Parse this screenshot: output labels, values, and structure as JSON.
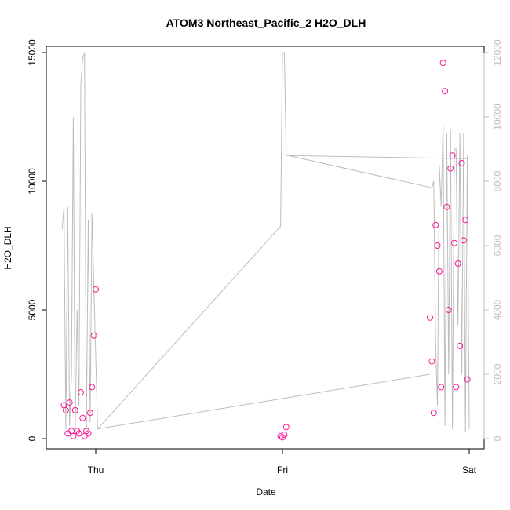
{
  "chart_data": {
    "type": "scatter",
    "title": "ATOM3 Northeast_Pacific_2 H2O_DLH",
    "xlabel": "Date",
    "ylabel": "H2O_DLH",
    "x_ticks": [
      "Thu",
      "Fri",
      "Sat"
    ],
    "x_range_days": [
      -0.2,
      2.0
    ],
    "ylim": [
      0,
      15000
    ],
    "y_ticks": [
      0,
      5000,
      10000,
      15000
    ],
    "y2lim": [
      0,
      12000
    ],
    "y2_ticks": [
      0,
      2000,
      4000,
      6000,
      8000,
      10000,
      12000
    ],
    "grid": false,
    "colors": {
      "points": "#ff1493",
      "altitude_line": "#bdbdbd",
      "right_axis": "#bdbdbd",
      "axis": "#000000"
    },
    "series": [
      {
        "kind": "points",
        "axis": "left",
        "x": [
          -0.17,
          -0.16,
          -0.15,
          -0.14,
          -0.13,
          -0.12,
          -0.11,
          -0.1,
          -0.09,
          -0.08,
          -0.07,
          -0.06,
          -0.05,
          -0.04,
          -0.03,
          -0.02,
          -0.01,
          0.0,
          0.99,
          1.0,
          1.01,
          1.02,
          1.79,
          1.8,
          1.81,
          1.82,
          1.83,
          1.84,
          1.85,
          1.86,
          1.87,
          1.88,
          1.89,
          1.9,
          1.91,
          1.92,
          1.93,
          1.94,
          1.95,
          1.96,
          1.97,
          1.98,
          1.99
        ],
        "y": [
          1300,
          1100,
          200,
          1400,
          300,
          100,
          1100,
          300,
          200,
          1800,
          800,
          100,
          300,
          200,
          1000,
          2000,
          4000,
          5800,
          100,
          50,
          150,
          450,
          4700,
          3000,
          1000,
          8300,
          7500,
          6500,
          2000,
          14600,
          13500,
          9000,
          5000,
          10500,
          11000,
          7600,
          2000,
          6800,
          3600,
          10700,
          7700,
          8500,
          2300
        ]
      },
      {
        "kind": "line",
        "axis": "right",
        "x": [
          -0.18,
          -0.17,
          -0.16,
          -0.15,
          -0.14,
          -0.13,
          -0.12,
          -0.11,
          -0.1,
          -0.09,
          -0.08,
          -0.07,
          -0.06,
          -0.05,
          -0.04,
          -0.03,
          -0.02,
          0.01,
          0.99,
          1.0,
          1.01,
          1.02,
          1.03,
          1.8,
          1.81,
          1.82,
          1.83,
          1.84,
          1.85,
          1.86,
          1.87,
          1.88,
          1.89,
          1.9,
          1.91,
          1.92,
          1.93,
          1.94,
          1.95,
          1.96,
          1.97,
          1.98,
          1.99,
          2.0
        ],
        "y": [
          6500,
          7200,
          300,
          7200,
          400,
          2000,
          10000,
          200,
          4000,
          1000,
          11000,
          11800,
          12000,
          300,
          6800,
          500,
          7000,
          300,
          6600,
          12000,
          12000,
          8800,
          8800,
          7800,
          8000,
          3000,
          1000,
          8500,
          7200,
          9800,
          400,
          9500,
          2000,
          9600,
          300,
          9000,
          9000,
          3500,
          9500,
          2000,
          9500,
          200,
          8800,
          300
        ]
      },
      {
        "kind": "connector",
        "axis": "right",
        "x": [
          0.01,
          1.79
        ],
        "y": [
          300,
          2000
        ]
      },
      {
        "kind": "connector",
        "axis": "right",
        "x": [
          1.03,
          1.99
        ],
        "y": [
          8800,
          8700
        ]
      }
    ]
  }
}
